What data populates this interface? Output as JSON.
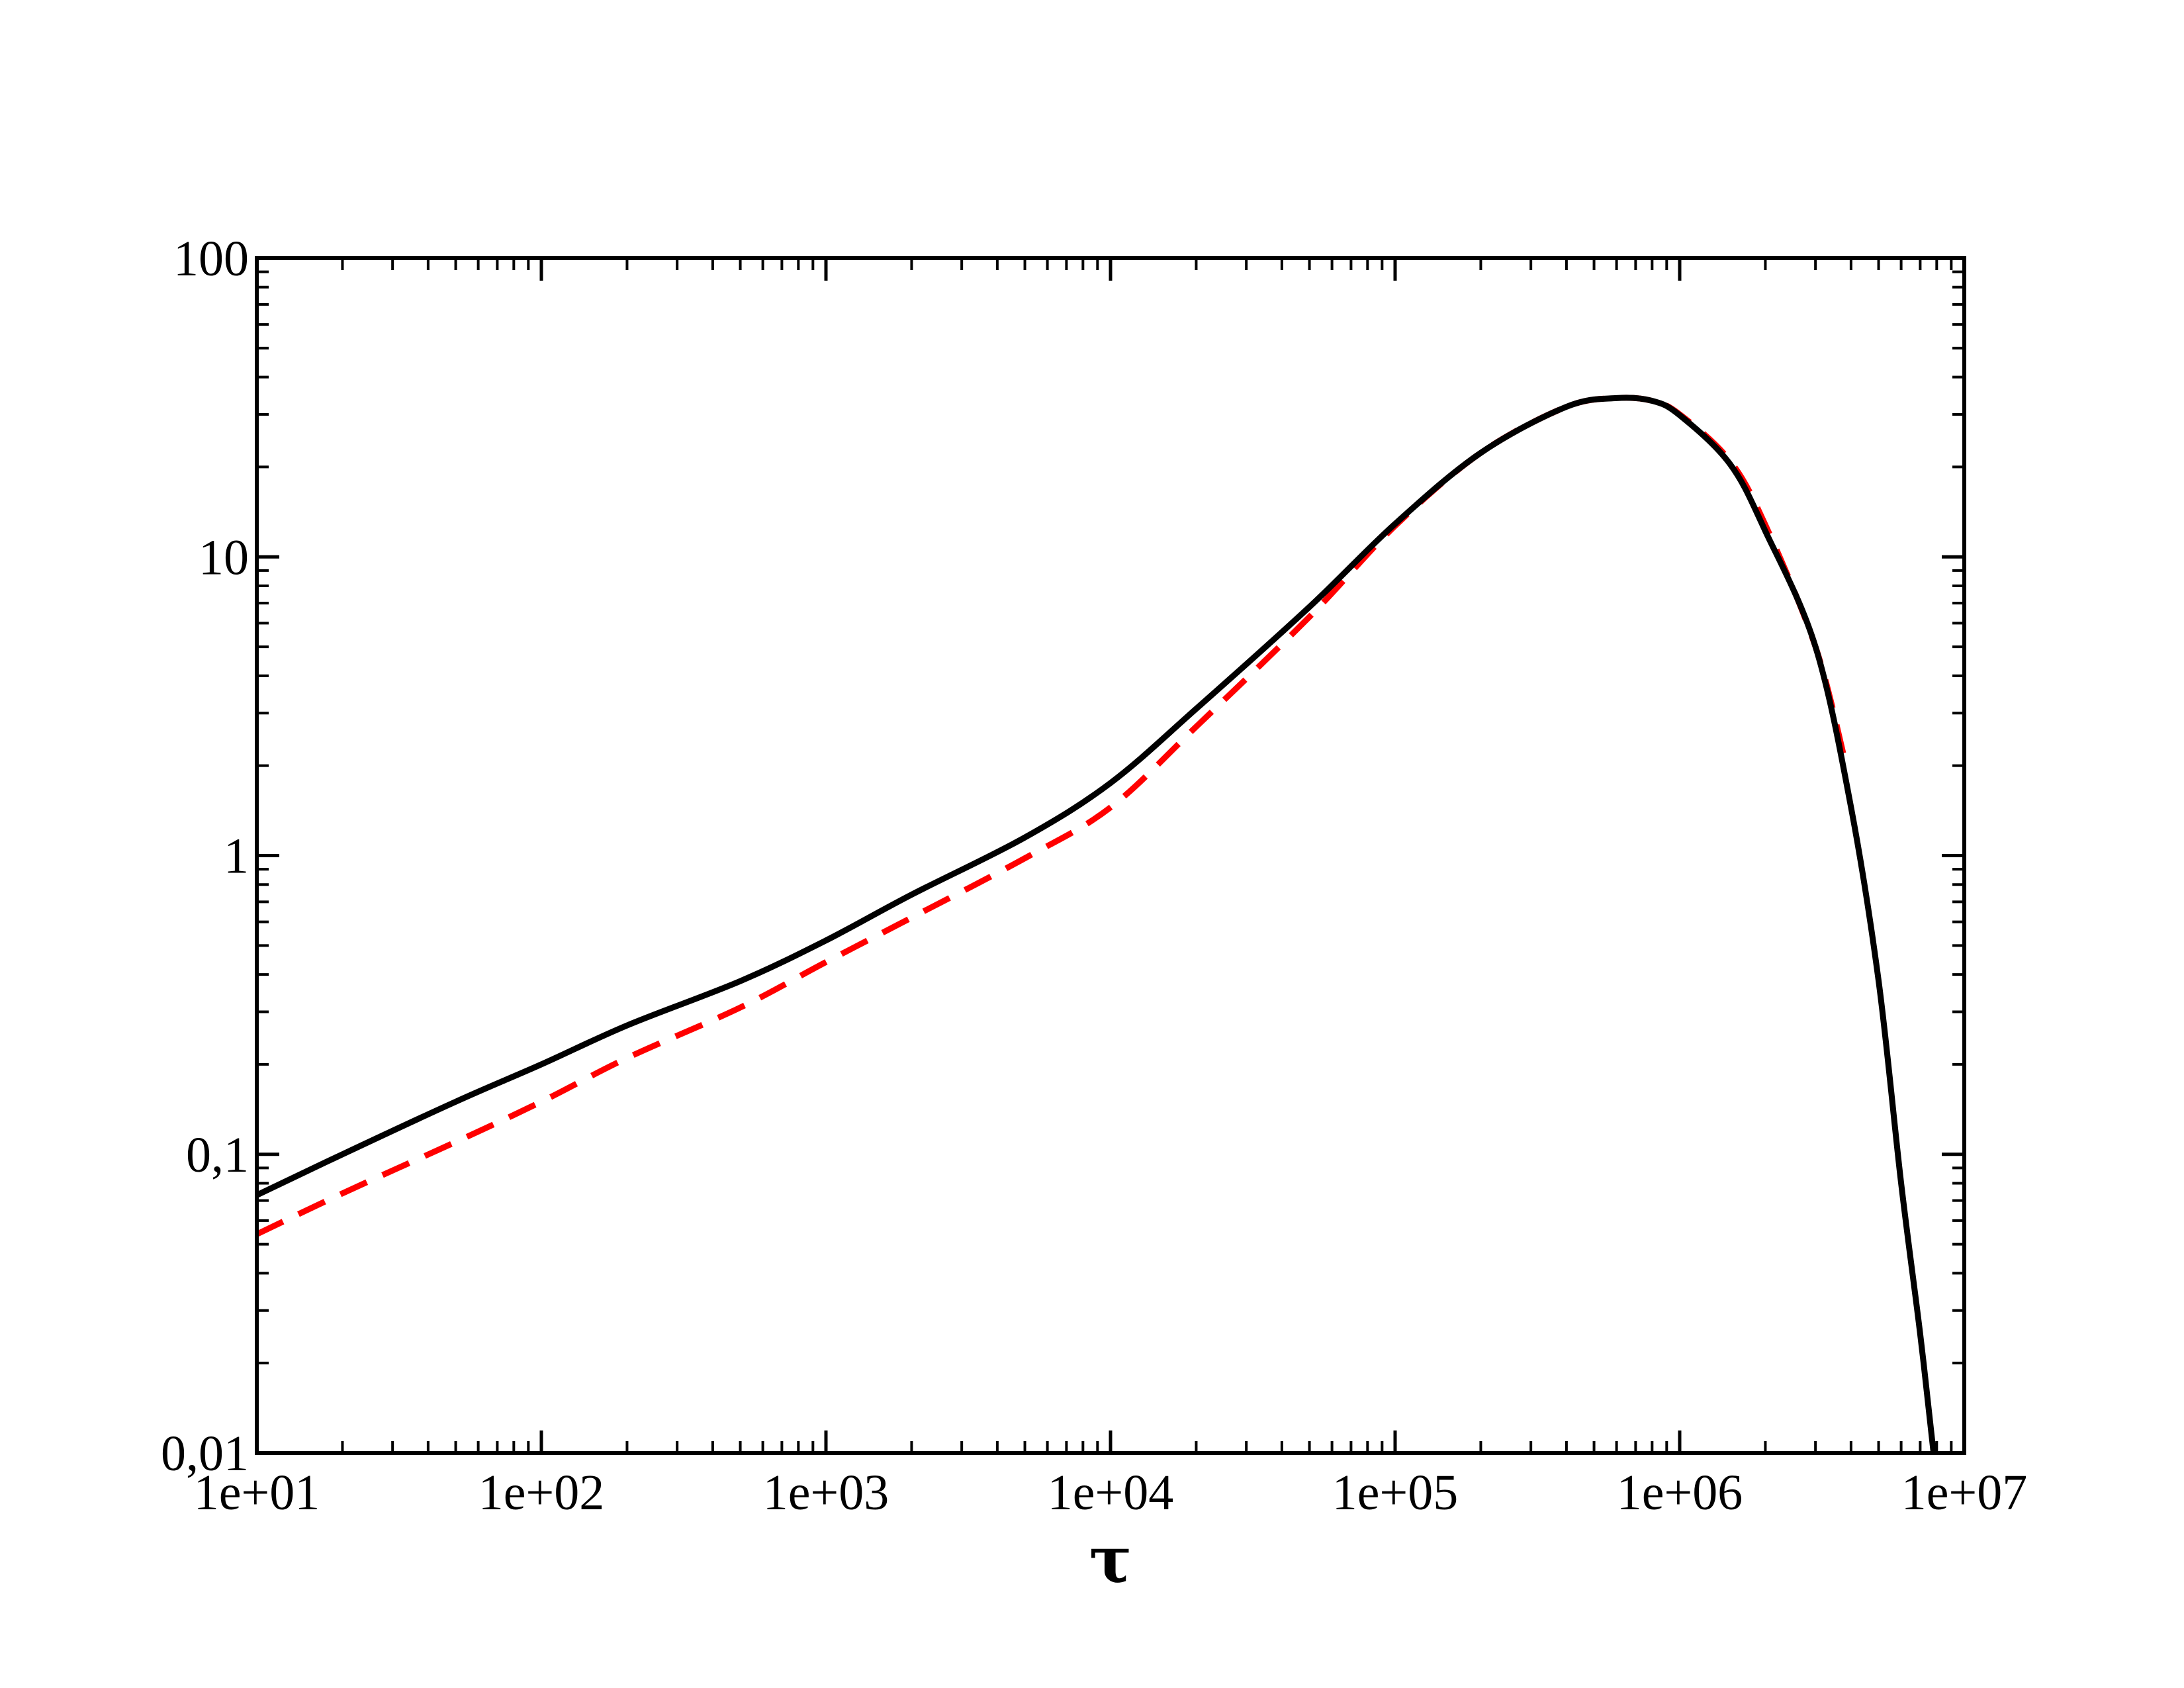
{
  "chart_data": {
    "type": "line",
    "xscale": "log",
    "yscale": "log",
    "xlim": [
      10,
      10000000
    ],
    "ylim": [
      0.01,
      100
    ],
    "xlabel": "τ",
    "ylabel": "",
    "x_ticks": [
      {
        "value": 10,
        "label": "1e+01"
      },
      {
        "value": 100,
        "label": "1e+02"
      },
      {
        "value": 1000,
        "label": "1e+03"
      },
      {
        "value": 10000,
        "label": "1e+04"
      },
      {
        "value": 100000,
        "label": "1e+05"
      },
      {
        "value": 1000000,
        "label": "1e+06"
      },
      {
        "value": 10000000,
        "label": "1e+07"
      }
    ],
    "y_ticks": [
      {
        "value": 0.01,
        "label": "0,01"
      },
      {
        "value": 0.1,
        "label": "0,1"
      },
      {
        "value": 1,
        "label": "1"
      },
      {
        "value": 10,
        "label": "10"
      },
      {
        "value": 100,
        "label": "100"
      }
    ],
    "grid": false,
    "series": [
      {
        "color": "#000000",
        "style": "solid",
        "x": [
          10,
          20,
          50,
          100,
          200,
          500,
          1000,
          2000,
          5000,
          10000,
          20000,
          50000,
          100000,
          200000,
          400000,
          600000,
          800000,
          1000000,
          1500000,
          2000000,
          3000000,
          4000000,
          5000000,
          6000000,
          7000000,
          7800000
        ],
        "y": [
          0.073,
          0.1,
          0.15,
          0.2,
          0.27,
          0.38,
          0.52,
          0.74,
          1.15,
          1.75,
          3.1,
          6.8,
          12.9,
          22.3,
          31.8,
          34.0,
          33.3,
          29.8,
          20.5,
          12.2,
          5.0,
          1.45,
          0.38,
          0.08,
          0.025,
          0.01
        ]
      },
      {
        "color": "#ff0000",
        "style": "dashed",
        "x": [
          10,
          20,
          50,
          100,
          200,
          500,
          1000,
          2000,
          5000,
          10000,
          20000,
          50000,
          100000,
          200000,
          400000,
          600000,
          800000,
          1000000,
          1500000,
          2000000,
          3000000,
          3800000
        ],
        "y": [
          0.054,
          0.074,
          0.11,
          0.15,
          0.21,
          0.31,
          0.44,
          0.62,
          0.98,
          1.45,
          2.7,
          6.3,
          12.7,
          22.3,
          31.8,
          34.0,
          33.3,
          30.0,
          21.0,
          12.8,
          5.0,
          2.1
        ]
      }
    ]
  }
}
